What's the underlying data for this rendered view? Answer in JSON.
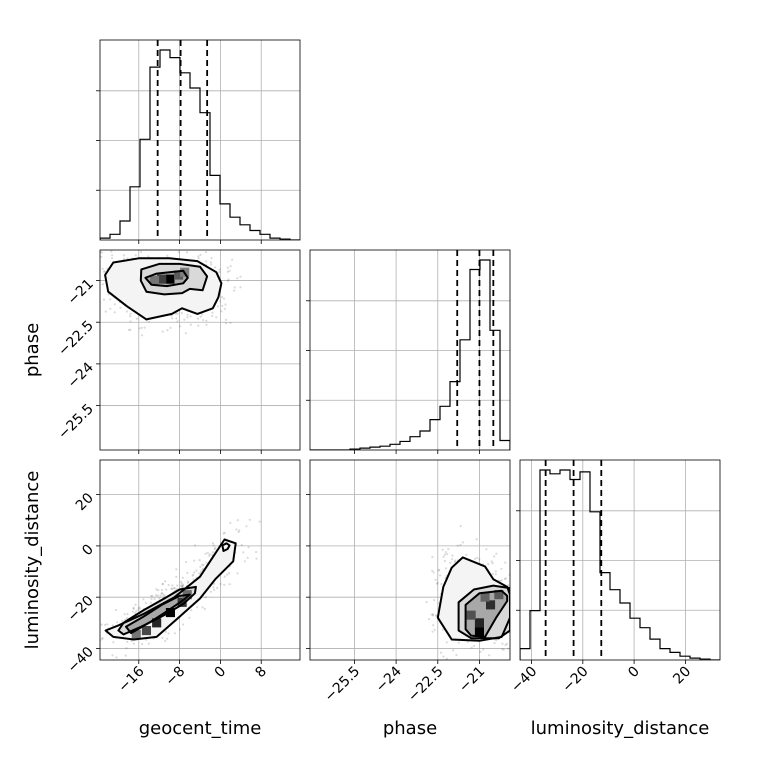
{
  "chart_data": {
    "type": "corner",
    "parameters": [
      "geocent_time",
      "phase",
      "luminosity_distance"
    ],
    "ticks": {
      "geocent_time": [
        -16,
        -8,
        0,
        8
      ],
      "phase": [
        -25.5,
        -24.0,
        -22.5,
        -21.0
      ],
      "luminosity_distance": [
        -40,
        -20,
        0,
        20
      ]
    },
    "ranges": {
      "geocent_time": [
        -23.6,
        15.6
      ],
      "phase": [
        -27.1,
        -19.9
      ],
      "luminosity_distance": [
        -44.5,
        33.5
      ]
    },
    "ylabels": {
      "phase": "phase",
      "luminosity_distance": "luminosity_distance"
    },
    "xlabels": {
      "geocent_time": "geocent_time",
      "phase": "phase",
      "luminosity_distance": "luminosity_distance"
    },
    "histograms": {
      "geocent_time": {
        "edges": [
          -23.6,
          -21.64,
          -19.68,
          -17.72,
          -15.76,
          -13.8,
          -11.84,
          -9.88,
          -7.92,
          -5.96,
          -4.0,
          -2.04,
          -0.08,
          1.88,
          3.84,
          5.8,
          7.76,
          9.72,
          11.68,
          13.64,
          15.6
        ],
        "counts": [
          0.01,
          0.03,
          0.1,
          0.28,
          0.53,
          0.91,
          1.0,
          0.96,
          0.88,
          0.8,
          0.67,
          0.34,
          0.19,
          0.12,
          0.08,
          0.05,
          0.03,
          0.01,
          0.005,
          0.0
        ],
        "quantiles": [
          -12.3,
          -7.8,
          -2.6
        ]
      },
      "phase": {
        "edges": [
          -27.1,
          -26.74,
          -26.38,
          -26.02,
          -25.66,
          -25.3,
          -24.94,
          -24.58,
          -24.22,
          -23.86,
          -23.5,
          -23.14,
          -22.78,
          -22.42,
          -22.06,
          -21.7,
          -21.34,
          -20.98,
          -20.62,
          -20.26,
          -19.9
        ],
        "counts": [
          0.0,
          0.0,
          0.0,
          0.0,
          0.005,
          0.01,
          0.015,
          0.02,
          0.03,
          0.045,
          0.07,
          0.1,
          0.16,
          0.23,
          0.36,
          0.58,
          0.95,
          1.0,
          0.63,
          0.05
        ],
        "quantiles": [
          -21.8,
          -21.0,
          -20.5
        ]
      },
      "luminosity_distance": {
        "edges": [
          -44.5,
          -40.6,
          -36.7,
          -32.8,
          -28.9,
          -25.0,
          -21.1,
          -17.2,
          -13.3,
          -9.4,
          -5.5,
          -1.6,
          2.3,
          6.2,
          10.1,
          14.0,
          17.9,
          21.8,
          25.7,
          29.6,
          33.5
        ],
        "counts": [
          0.06,
          0.26,
          1.0,
          0.98,
          1.0,
          0.95,
          0.99,
          0.78,
          0.46,
          0.37,
          0.3,
          0.22,
          0.17,
          0.11,
          0.06,
          0.04,
          0.02,
          0.01,
          0.005,
          0.0
        ],
        "quantiles": [
          -34.5,
          -23.6,
          -12.8
        ]
      }
    },
    "contours_2d": {
      "phase_vs_geocent_time": {
        "outer": [
          [
            -22.6,
            -20.8
          ],
          [
            -21.0,
            -20.35
          ],
          [
            -16.0,
            -20.2
          ],
          [
            -10.0,
            -20.2
          ],
          [
            -4.5,
            -20.3
          ],
          [
            -0.8,
            -20.7
          ],
          [
            0.2,
            -21.1
          ],
          [
            -0.4,
            -21.6
          ],
          [
            -1.5,
            -22.0
          ],
          [
            -4.5,
            -22.2
          ],
          [
            -7.5,
            -22.0
          ],
          [
            -9.5,
            -22.2
          ],
          [
            -14.5,
            -22.4
          ],
          [
            -18.5,
            -21.9
          ],
          [
            -22.0,
            -21.4
          ]
        ],
        "middle": [
          [
            -15.5,
            -20.6
          ],
          [
            -12.0,
            -20.4
          ],
          [
            -8.0,
            -20.4
          ],
          [
            -4.0,
            -20.5
          ],
          [
            -2.6,
            -20.85
          ],
          [
            -3.5,
            -21.35
          ],
          [
            -6.0,
            -21.3
          ],
          [
            -7.5,
            -21.45
          ],
          [
            -11.0,
            -21.5
          ],
          [
            -14.5,
            -21.4
          ],
          [
            -15.6,
            -21.0
          ]
        ],
        "inner": [
          [
            -14.7,
            -20.9
          ],
          [
            -12.5,
            -20.75
          ],
          [
            -10.0,
            -20.7
          ],
          [
            -7.3,
            -20.65
          ],
          [
            -6.4,
            -20.9
          ],
          [
            -7.3,
            -21.1
          ],
          [
            -10.5,
            -21.2
          ],
          [
            -13.5,
            -21.15
          ]
        ],
        "bins": [
          [
            -9.9,
            -20.95,
            1.0
          ],
          [
            -11.5,
            -20.95,
            0.65
          ],
          [
            -8.2,
            -20.8,
            0.5
          ],
          [
            -12.9,
            -21.0,
            0.35
          ],
          [
            -7.0,
            -20.7,
            0.3
          ]
        ]
      },
      "luminosity_distance_vs_geocent_time": {
        "outer": [
          [
            -22.5,
            -33.0
          ],
          [
            -20.0,
            -31.0
          ],
          [
            -15.0,
            -26.5
          ],
          [
            -9.0,
            -20.0
          ],
          [
            -4.0,
            -12.0
          ],
          [
            -1.2,
            -3.5
          ],
          [
            0.8,
            2.5
          ],
          [
            3.0,
            1.0
          ],
          [
            2.5,
            -6.0
          ],
          [
            -1.0,
            -13.0
          ],
          [
            -4.0,
            -20.5
          ],
          [
            -8.5,
            -28.5
          ],
          [
            -12.5,
            -35.5
          ],
          [
            -17.0,
            -36.5
          ],
          [
            -21.0,
            -35.5
          ]
        ],
        "middle": [
          [
            -19.0,
            -34.5
          ],
          [
            -15.5,
            -31.5
          ],
          [
            -11.0,
            -27.0
          ],
          [
            -7.2,
            -22.5
          ],
          [
            -5.0,
            -18.5
          ],
          [
            -4.8,
            -16.0
          ],
          [
            -8.0,
            -17.0
          ],
          [
            -11.0,
            -20.5
          ],
          [
            -15.0,
            -25.0
          ],
          [
            -19.0,
            -30.0
          ],
          [
            -20.0,
            -33.0
          ]
        ],
        "inner": [
          [
            -17.5,
            -34.0
          ],
          [
            -14.0,
            -30.0
          ],
          [
            -10.5,
            -25.5
          ],
          [
            -7.5,
            -21.5
          ],
          [
            -6.0,
            -19.0
          ],
          [
            -8.0,
            -19.5
          ],
          [
            -11.5,
            -23.0
          ],
          [
            -15.0,
            -27.5
          ],
          [
            -18.5,
            -31.5
          ]
        ],
        "small": [
          [
            0.6,
            -2.0
          ],
          [
            1.4,
            -1.2
          ],
          [
            1.8,
            0.2
          ],
          [
            1.2,
            1.0
          ],
          [
            0.4,
            0.2
          ]
        ],
        "bins": [
          [
            -9.8,
            -26.0,
            1.0
          ],
          [
            -12.5,
            -30.0,
            0.8
          ],
          [
            -7.5,
            -22.0,
            0.7
          ],
          [
            -14.5,
            -33.0,
            0.6
          ],
          [
            -6.5,
            -19.0,
            0.4
          ],
          [
            -16.5,
            -34.5,
            0.35
          ]
        ]
      },
      "luminosity_distance_vs_phase": {
        "outer": [
          [
            -22.3,
            -16.0
          ],
          [
            -22.0,
            -8.5
          ],
          [
            -21.6,
            -4.5
          ],
          [
            -20.8,
            -8.0
          ],
          [
            -20.5,
            -13.0
          ],
          [
            -20.0,
            -16.0
          ],
          [
            -19.9,
            -19.0
          ],
          [
            -19.9,
            -28.0
          ],
          [
            -20.2,
            -35.5
          ],
          [
            -21.0,
            -37.0
          ],
          [
            -22.0,
            -36.5
          ],
          [
            -22.5,
            -28.0
          ]
        ],
        "middle": [
          [
            -21.75,
            -33.0
          ],
          [
            -21.75,
            -22.0
          ],
          [
            -21.2,
            -17.0
          ],
          [
            -20.5,
            -15.5
          ],
          [
            -19.9,
            -16.5
          ],
          [
            -19.9,
            -33.0
          ],
          [
            -20.3,
            -36.0
          ],
          [
            -21.3,
            -36.0
          ]
        ],
        "inner": [
          [
            -21.5,
            -32.5
          ],
          [
            -21.5,
            -23.0
          ],
          [
            -21.0,
            -18.5
          ],
          [
            -20.2,
            -17.5
          ],
          [
            -20.0,
            -19.5
          ],
          [
            -20.0,
            -21.5
          ],
          [
            -20.4,
            -28.0
          ],
          [
            -20.8,
            -35.5
          ],
          [
            -21.3,
            -35.0
          ]
        ],
        "bins": [
          [
            -21.0,
            -33.5,
            1.0
          ],
          [
            -21.0,
            -30.0,
            0.8
          ],
          [
            -20.6,
            -23.0,
            0.75
          ],
          [
            -21.3,
            -27.0,
            0.55
          ],
          [
            -20.3,
            -19.0,
            0.5
          ],
          [
            -20.8,
            -20.0,
            0.45
          ]
        ]
      }
    }
  }
}
